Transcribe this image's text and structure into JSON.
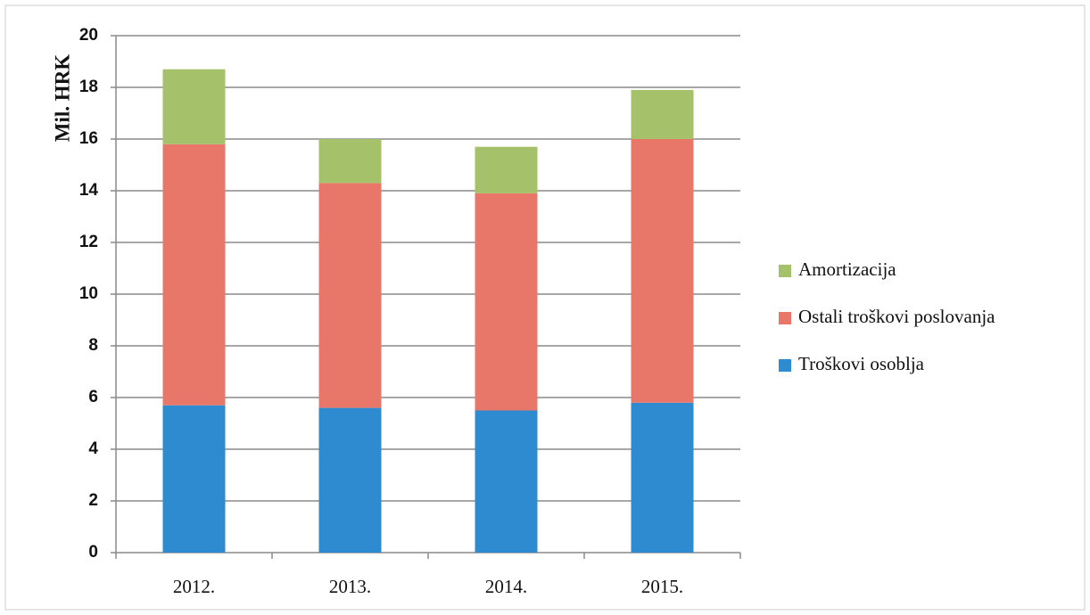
{
  "chart_data": {
    "type": "stacked_bar",
    "y_label": "Mil. HRK",
    "categories": [
      "2012.",
      "2013.",
      "2014.",
      "2015."
    ],
    "series": [
      {
        "name": "Troškovi osoblja",
        "color": "#2e8bd0",
        "values": [
          5.7,
          5.6,
          5.5,
          5.8
        ]
      },
      {
        "name": "Ostali troškovi poslovanja",
        "color": "#e8776a",
        "values": [
          10.1,
          8.7,
          8.4,
          10.2
        ]
      },
      {
        "name": "Amortizacija",
        "color": "#a5c26a",
        "values": [
          2.9,
          1.7,
          1.8,
          1.9
        ]
      }
    ],
    "ylim": [
      0,
      20
    ],
    "yticks": [
      0,
      2,
      4,
      6,
      8,
      10,
      12,
      14,
      16,
      18,
      20
    ],
    "grid": true,
    "legend": "right"
  }
}
